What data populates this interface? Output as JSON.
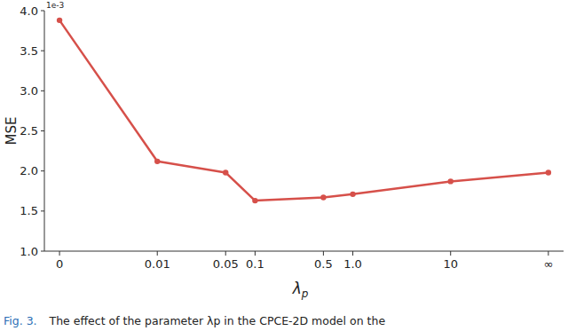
{
  "chart_data": {
    "type": "line",
    "x_label": "λp",
    "y_label": "MSE",
    "y_offset_label": "1e-3",
    "caption_label": "Fig. 3.",
    "caption": "The effect of the parameter λp in the CPCE-2D model on the",
    "x": [
      0.001,
      0.01,
      0.05,
      0.1,
      0.5,
      1,
      10,
      100
    ],
    "values": [
      3.88,
      2.12,
      1.98,
      1.63,
      1.67,
      1.71,
      1.87,
      1.98
    ],
    "color": "#d6504a",
    "marker": "circle",
    "log": "x",
    "xlim": [
      0.0007,
      143
    ],
    "xticks": [
      {
        "value": 0.001,
        "label": "0"
      },
      0.01,
      0.05,
      0.1,
      0.5,
      {
        "value": 1,
        "label": "1.0"
      },
      10,
      {
        "value": 100,
        "label": "∞"
      }
    ],
    "ylim": [
      1.0,
      4.0
    ],
    "yticks": [
      {
        "value": 1.0,
        "label": "1.0"
      },
      1.5,
      {
        "value": 2.0,
        "label": "2.0"
      },
      2.5,
      {
        "value": 3.0,
        "label": "3.0"
      },
      3.5,
      {
        "value": 4.0,
        "label": "4.0"
      }
    ],
    "grid": false
  }
}
